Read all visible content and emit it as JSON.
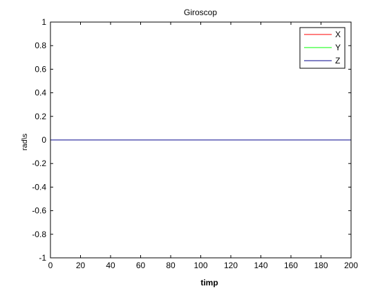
{
  "chart_data": {
    "type": "line",
    "title": "Giroscop",
    "xlabel": "timp",
    "ylabel": "rad\\s",
    "xlim": [
      0,
      200
    ],
    "ylim": [
      -1,
      1
    ],
    "xticks": [
      0,
      20,
      40,
      60,
      80,
      100,
      120,
      140,
      160,
      180,
      200
    ],
    "yticks": [
      -1,
      -0.8,
      -0.6,
      -0.4,
      -0.2,
      0,
      0.2,
      0.4,
      0.6,
      0.8,
      1
    ],
    "grid": false,
    "legend_position": "top-right",
    "series": [
      {
        "name": "X",
        "color": "#ff0000",
        "x": [
          0,
          200
        ],
        "y": [
          0,
          0
        ]
      },
      {
        "name": "Y",
        "color": "#00ff00",
        "x": [
          0,
          200
        ],
        "y": [
          0,
          0
        ]
      },
      {
        "name": "Z",
        "color": "#00008b",
        "x": [
          0,
          200
        ],
        "y": [
          0,
          0
        ]
      }
    ]
  }
}
